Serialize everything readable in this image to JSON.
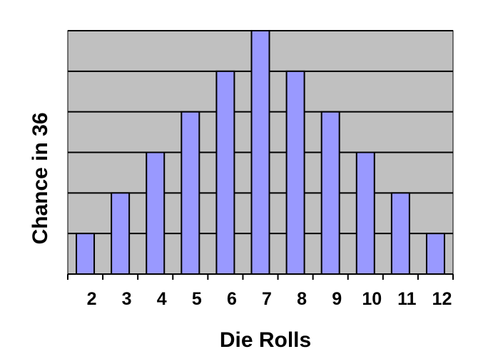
{
  "chart_data": {
    "type": "bar",
    "xlabel": "Die Rolls",
    "ylabel": "Chance in 36",
    "categories": [
      "2",
      "3",
      "4",
      "5",
      "6",
      "7",
      "8",
      "9",
      "10",
      "11",
      "12"
    ],
    "values": [
      1,
      2,
      3,
      4,
      5,
      6,
      5,
      4,
      3,
      2,
      1
    ],
    "ylim": [
      0,
      6
    ],
    "grid": true,
    "legend": "none",
    "y_tick_labels_shown": false
  },
  "colors": {
    "plot_background": "#c0c0c0",
    "bar_fill": "#9999ff",
    "bar_stroke": "#000000",
    "gridline": "#000000"
  }
}
